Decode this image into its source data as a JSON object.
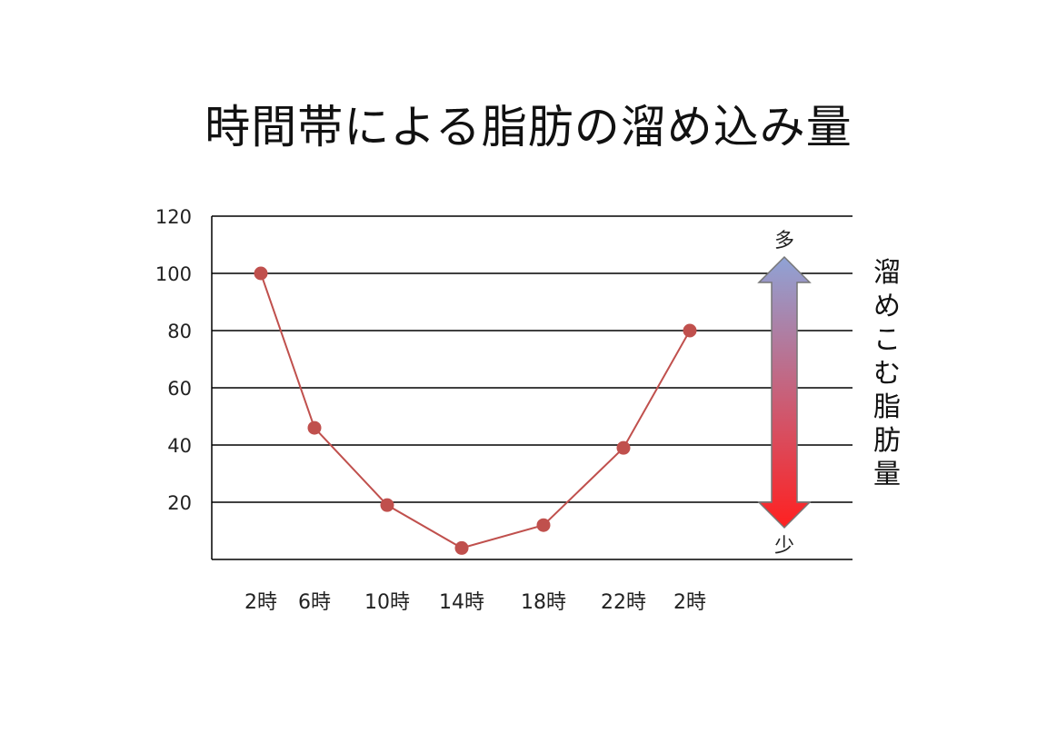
{
  "chart_data": {
    "type": "line",
    "title": "時間帯による脂肪の溜め込み量",
    "categories": [
      "2時",
      "6時",
      "10時",
      "14時",
      "18時",
      "22時",
      "2時"
    ],
    "series": [
      {
        "values": [
          100,
          46,
          19,
          4,
          12,
          39,
          80
        ]
      }
    ],
    "ylim": [
      0,
      120
    ],
    "yticks": [
      20,
      40,
      60,
      80,
      100,
      120
    ],
    "grid": true,
    "line_color": "#c0504d",
    "side_label": "溜めこむ脂肪量",
    "arrow_top_label": "多",
    "arrow_bottom_label": "少",
    "arrow_colors": {
      "top": "#8fa3d6",
      "bottom": "#ff2020"
    }
  }
}
